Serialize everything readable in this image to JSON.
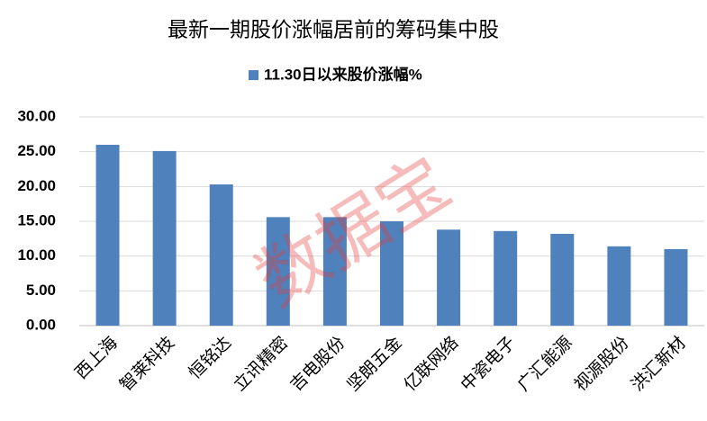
{
  "chart_data": {
    "type": "bar",
    "title": "最新一期股价涨幅居前的筹码集中股",
    "watermark": "数据宝",
    "categories": [
      "西上海",
      "智莱科技",
      "恒铭达",
      "立讯精密",
      "吉电股份",
      "坚朗五金",
      "亿联网络",
      "中瓷电子",
      "广汇能源",
      "视源股份",
      "洪汇新材"
    ],
    "series": [
      {
        "name": "11.30日以来股价涨幅%",
        "color": "#4f81bd",
        "values": [
          26.0,
          25.1,
          20.3,
          15.6,
          15.6,
          15.0,
          13.8,
          13.6,
          13.2,
          11.4,
          11.0
        ]
      }
    ],
    "ylim": [
      0,
      30
    ],
    "yticks": [
      {
        "value": 0,
        "label": "0.00"
      },
      {
        "value": 5,
        "label": "5.00"
      },
      {
        "value": 10,
        "label": "10.00"
      },
      {
        "value": 15,
        "label": "15.00"
      },
      {
        "value": 20,
        "label": "20.00"
      },
      {
        "value": 25,
        "label": "25.00"
      },
      {
        "value": 30,
        "label": "30.00"
      }
    ],
    "grid": true,
    "legend": "top"
  }
}
